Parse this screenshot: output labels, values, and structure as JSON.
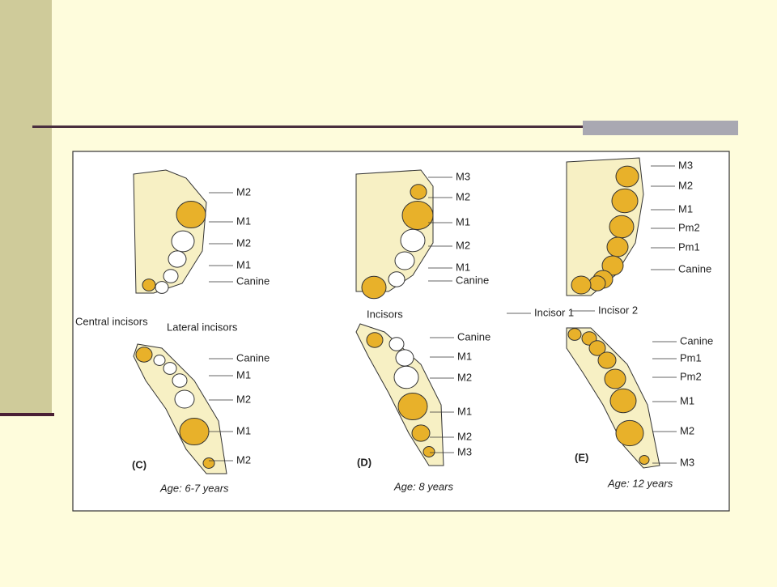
{
  "panels": [
    {
      "letter": "(C)",
      "caption": "Age: 6-7 years",
      "upper_labels": [
        "M2",
        "M1",
        "M2",
        "M1",
        "Canine",
        "Central incisors",
        "Lateral incisors"
      ],
      "lower_labels": [
        "Canine",
        "M1",
        "M2",
        "M1",
        "M2"
      ]
    },
    {
      "letter": "(D)",
      "caption": "Age: 8 years",
      "upper_labels": [
        "M3",
        "M2",
        "M1",
        "M2",
        "M1",
        "Canine",
        "Incisors"
      ],
      "lower_labels": [
        "Canine",
        "M1",
        "M2",
        "M1",
        "M2",
        "M3"
      ]
    },
    {
      "letter": "(E)",
      "caption": "Age: 12 years",
      "upper_labels": [
        "M3",
        "M2",
        "M1",
        "Pm2",
        "Pm1",
        "Canine",
        "Incisor 1",
        "Incisor 2"
      ],
      "lower_labels": [
        "Canine",
        "Pm1",
        "Pm2",
        "M1",
        "M2",
        "M3"
      ]
    }
  ]
}
